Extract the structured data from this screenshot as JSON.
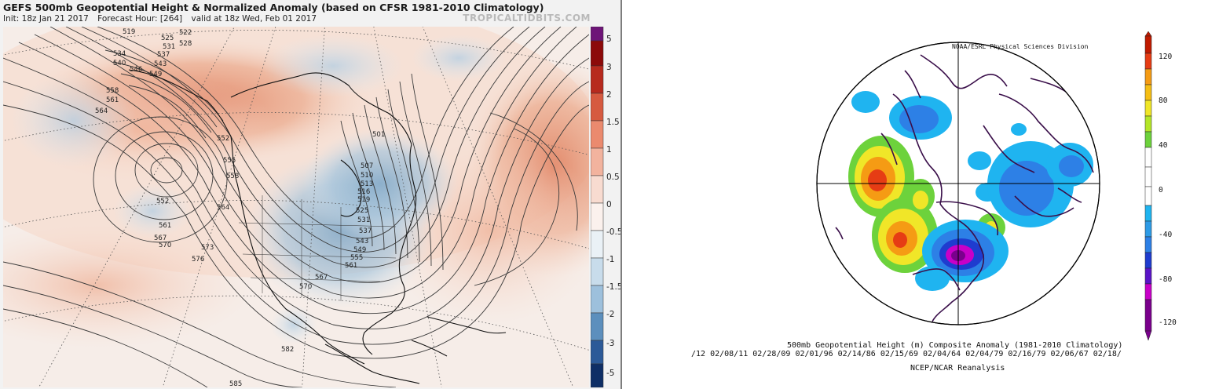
{
  "left": {
    "title": "GEFS 500mb Geopotential Height & Normalized Anomaly (based on CFSR 1981-2010 Climatology)",
    "init": "Init: 18z Jan 21 2017",
    "forecast_hour": "Forecast Hour: [264]",
    "valid": "valid at 18z Wed, Feb 01 2017",
    "site": "TROPICALTIDBITS.COM",
    "colorbar_labels": [
      "5",
      "3",
      "2",
      "1.5",
      "1",
      "0.5",
      "0",
      "-0.5",
      "-1",
      "-1.5",
      "-2",
      "-3",
      "-5"
    ],
    "contours": [
      "519",
      "522",
      "525",
      "528",
      "531",
      "534",
      "537",
      "540",
      "543",
      "546",
      "549",
      "558",
      "561",
      "564",
      "552",
      "552",
      "555",
      "558",
      "501",
      "507",
      "510",
      "513",
      "516",
      "519",
      "525",
      "531",
      "537",
      "543",
      "549",
      "555",
      "561",
      "561",
      "564",
      "567",
      "570",
      "573",
      "576",
      "567",
      "570",
      "582",
      "585"
    ]
  },
  "right": {
    "division": "NOAA/ESRL Physical Sciences Division",
    "caption": "500mb Geopotential Height (m) Composite Anomaly (1981-2010 Climatology)",
    "dates": "/12 02/08/11 02/28/09 02/01/96 02/14/86 02/15/69 02/04/64 02/04/79 02/16/79 02/06/67 02/18/",
    "source": "NCEP/NCAR Reanalysis",
    "colorbar_labels": [
      "120",
      "80",
      "40",
      "0",
      "-40",
      "-80",
      "-120"
    ],
    "colors": {
      "purple": "#7a008c",
      "magenta": "#c800c8",
      "blue_dark": "#1f3ccf",
      "blue": "#2d80e6",
      "cyan": "#1fb4f0",
      "white": "#ffffff",
      "green": "#6dd23c",
      "yellow": "#f0e628",
      "orange": "#f59b14",
      "red": "#e63c14",
      "darkred": "#c01a00"
    }
  }
}
